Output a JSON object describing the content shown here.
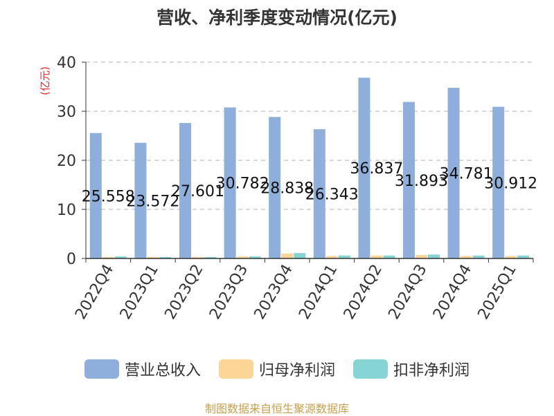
{
  "chart_data": {
    "type": "bar",
    "title": "营收、净利季度变动情况(亿元)",
    "ylabel": "(亿元)",
    "ylim": [
      0,
      40
    ],
    "yticks": [
      0,
      10,
      20,
      30,
      40
    ],
    "grid": true,
    "legend_position": "bottom",
    "categories": [
      "2022Q4",
      "2023Q1",
      "2023Q2",
      "2023Q3",
      "2023Q4",
      "2024Q1",
      "2024Q2",
      "2024Q3",
      "2024Q4",
      "2025Q1"
    ],
    "series": [
      {
        "name": "营业总收入",
        "color": "#8eaedb",
        "values": [
          25.558,
          23.572,
          27.601,
          30.782,
          28.838,
          26.343,
          36.837,
          31.893,
          34.781,
          30.912
        ],
        "labels": [
          "25.558",
          "23.572",
          "27.601",
          "30.782",
          "28.838",
          "26.343",
          "36.837",
          "31.893",
          "34.781",
          "30.912"
        ]
      },
      {
        "name": "归母净利润",
        "color": "#fdd596",
        "values": [
          0.3,
          0.3,
          0.3,
          0.4,
          1.0,
          0.5,
          0.6,
          0.7,
          0.5,
          0.5
        ]
      },
      {
        "name": "扣非净利润",
        "color": "#86d4d4",
        "values": [
          0.4,
          0.3,
          0.3,
          0.4,
          1.1,
          0.6,
          0.6,
          0.8,
          0.6,
          0.6
        ]
      }
    ]
  },
  "source": "制图数据来自恒生聚源数据库",
  "colors": {
    "axis": "#333333",
    "grid": "#cccccc",
    "ylabel": "#e8262b"
  }
}
